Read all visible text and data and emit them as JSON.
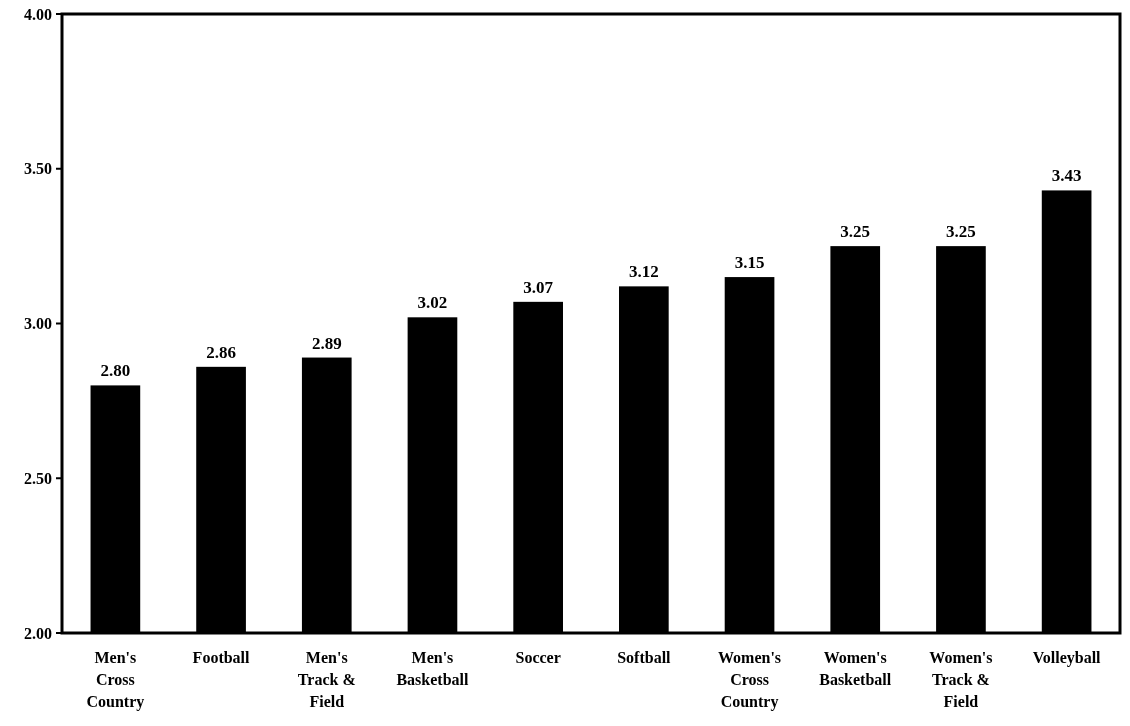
{
  "chart_data": {
    "type": "bar",
    "categories": [
      "Men's Cross Country",
      "Football",
      "Men's Track & Field",
      "Men's Basketball",
      "Soccer",
      "Softball",
      "Women's Cross Country",
      "Women's Basketball",
      "Women's Track & Field",
      "Volleyball"
    ],
    "values": [
      2.8,
      2.86,
      2.89,
      3.02,
      3.07,
      3.12,
      3.15,
      3.25,
      3.25,
      3.43
    ],
    "color": "#000000",
    "ylim": [
      2,
      4
    ],
    "yticks": [
      {
        "value": 2,
        "label": "2.00"
      },
      {
        "value": 2.5,
        "label": "2.50"
      },
      {
        "value": 3,
        "label": "3.00"
      },
      {
        "value": 3.5,
        "label": "3.50"
      },
      {
        "value": 4,
        "label": "4.00"
      }
    ],
    "value_labels": [
      "2.80",
      "2.86",
      "2.89",
      "3.02",
      "3.07",
      "3.12",
      "3.15",
      "3.25",
      "3.25",
      "3.43"
    ],
    "grid": false
  }
}
